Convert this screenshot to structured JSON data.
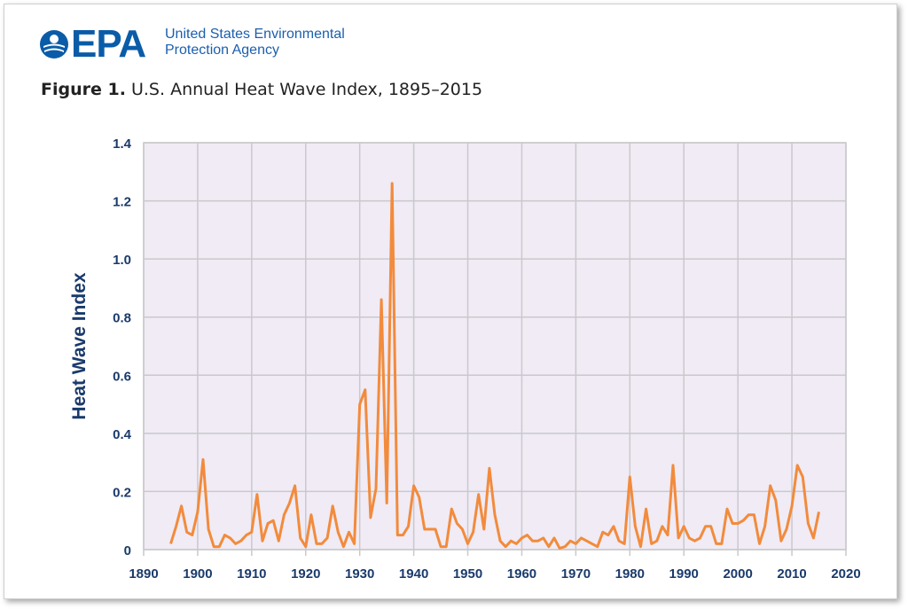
{
  "header": {
    "logo_text": "EPA",
    "agency_line1": "United States Environmental",
    "agency_line2": "Protection Agency",
    "figure_label": "Figure 1.",
    "figure_title": "U.S. Annual Heat Wave Index, 1895–2015"
  },
  "colors": {
    "brand": "#0a5ca8",
    "line": "#f28b3c",
    "plot_bg": "#f0ebf5",
    "grid": "#c9c9cc",
    "axis_text": "#1a3a6b"
  },
  "chart_data": {
    "type": "line",
    "title": "U.S. Annual Heat Wave Index, 1895–2015",
    "xlabel": "",
    "ylabel": "Heat Wave Index",
    "xlim": [
      1890,
      2020
    ],
    "ylim": [
      0,
      1.4
    ],
    "xticks": [
      "1890",
      "1900",
      "1910",
      "1920",
      "1930",
      "1940",
      "1950",
      "1960",
      "1970",
      "1980",
      "1990",
      "2000",
      "2010",
      "2020"
    ],
    "yticks": [
      "0",
      "0.2",
      "0.4",
      "0.6",
      "0.8",
      "1.0",
      "1.2",
      "1.4"
    ],
    "grid": true,
    "series": [
      {
        "name": "",
        "x": [
          1895,
          1896,
          1897,
          1898,
          1899,
          1900,
          1901,
          1902,
          1903,
          1904,
          1905,
          1906,
          1907,
          1908,
          1909,
          1910,
          1911,
          1912,
          1913,
          1914,
          1915,
          1916,
          1917,
          1918,
          1919,
          1920,
          1921,
          1922,
          1923,
          1924,
          1925,
          1926,
          1927,
          1928,
          1929,
          1930,
          1931,
          1932,
          1933,
          1934,
          1935,
          1936,
          1937,
          1938,
          1939,
          1940,
          1941,
          1942,
          1943,
          1944,
          1945,
          1946,
          1947,
          1948,
          1949,
          1950,
          1951,
          1952,
          1953,
          1954,
          1955,
          1956,
          1957,
          1958,
          1959,
          1960,
          1961,
          1962,
          1963,
          1964,
          1965,
          1966,
          1967,
          1968,
          1969,
          1970,
          1971,
          1972,
          1973,
          1974,
          1975,
          1976,
          1977,
          1978,
          1979,
          1980,
          1981,
          1982,
          1983,
          1984,
          1985,
          1986,
          1987,
          1988,
          1989,
          1990,
          1991,
          1992,
          1993,
          1994,
          1995,
          1996,
          1997,
          1998,
          1999,
          2000,
          2001,
          2002,
          2003,
          2004,
          2005,
          2006,
          2007,
          2008,
          2009,
          2010,
          2011,
          2012,
          2013,
          2014,
          2015
        ],
        "y": [
          0.02,
          0.08,
          0.15,
          0.06,
          0.05,
          0.13,
          0.31,
          0.07,
          0.01,
          0.01,
          0.05,
          0.04,
          0.02,
          0.03,
          0.05,
          0.06,
          0.19,
          0.03,
          0.09,
          0.1,
          0.03,
          0.12,
          0.16,
          0.22,
          0.04,
          0.01,
          0.12,
          0.02,
          0.02,
          0.04,
          0.15,
          0.06,
          0.01,
          0.06,
          0.02,
          0.5,
          0.55,
          0.11,
          0.21,
          0.86,
          0.16,
          1.26,
          0.05,
          0.05,
          0.08,
          0.22,
          0.18,
          0.07,
          0.07,
          0.07,
          0.01,
          0.01,
          0.14,
          0.09,
          0.07,
          0.02,
          0.06,
          0.19,
          0.07,
          0.28,
          0.12,
          0.03,
          0.01,
          0.03,
          0.02,
          0.04,
          0.05,
          0.03,
          0.03,
          0.04,
          0.01,
          0.04,
          0.005,
          0.01,
          0.03,
          0.02,
          0.04,
          0.03,
          0.02,
          0.01,
          0.06,
          0.05,
          0.08,
          0.03,
          0.02,
          0.25,
          0.08,
          0.01,
          0.14,
          0.02,
          0.03,
          0.08,
          0.05,
          0.29,
          0.04,
          0.08,
          0.04,
          0.03,
          0.04,
          0.08,
          0.08,
          0.02,
          0.02,
          0.14,
          0.09,
          0.09,
          0.1,
          0.12,
          0.12,
          0.02,
          0.08,
          0.22,
          0.17,
          0.03,
          0.07,
          0.15,
          0.29,
          0.25,
          0.09,
          0.04,
          0.13
        ]
      }
    ]
  }
}
